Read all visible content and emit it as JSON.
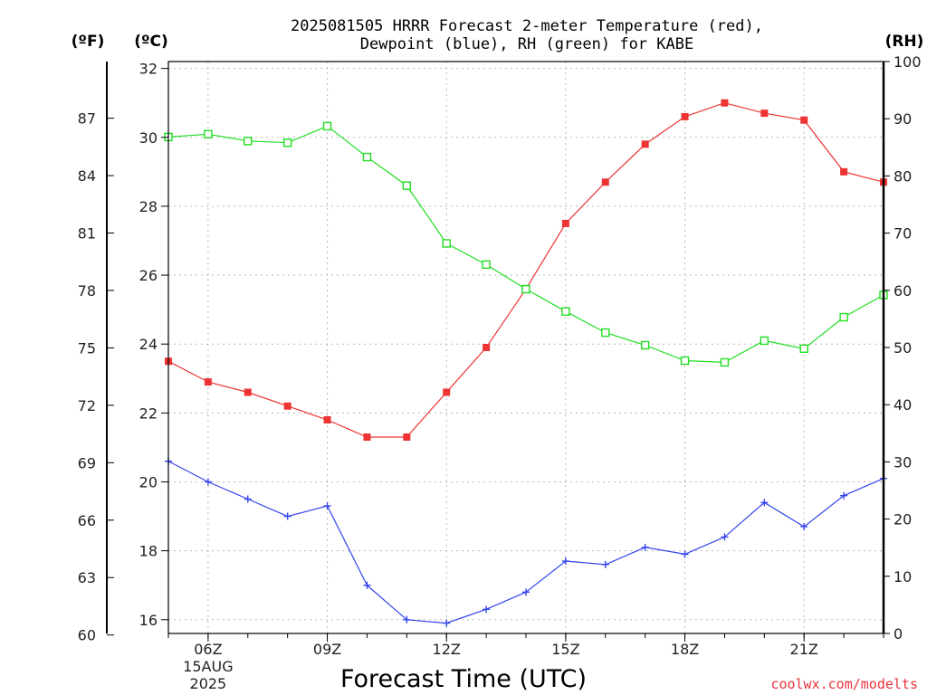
{
  "chart_data": {
    "type": "line",
    "title_line1": "2025081505 HRRR Forecast 2-meter Temperature (red),",
    "title_line2": "Dewpoint (blue), RH (green) for KABE",
    "xlabel": "Forecast Time (UTC)",
    "unit_f": "(ºF)",
    "unit_c": "(ºC)",
    "unit_rh": "(RH)",
    "credit": "coolwx.com/modelts",
    "x_hours": [
      5,
      6,
      7,
      8,
      9,
      10,
      11,
      12,
      13,
      14,
      15,
      16,
      17,
      18,
      19,
      20,
      21,
      22,
      23
    ],
    "x_ticks": [
      {
        "hour": 6,
        "label": "06Z",
        "date1": "15AUG",
        "date2": "2025"
      },
      {
        "hour": 9,
        "label": "09Z",
        "date1": "",
        "date2": ""
      },
      {
        "hour": 12,
        "label": "12Z",
        "date1": "",
        "date2": ""
      },
      {
        "hour": 15,
        "label": "15Z",
        "date1": "",
        "date2": ""
      },
      {
        "hour": 18,
        "label": "18Z",
        "date1": "",
        "date2": ""
      },
      {
        "hour": 21,
        "label": "21Z",
        "date1": "",
        "date2": ""
      }
    ],
    "xlim": [
      5,
      23
    ],
    "ylim_c": [
      15.6,
      32.2
    ],
    "ylim_rh": [
      0,
      100
    ],
    "c_ticks": [
      "16",
      "18",
      "20",
      "22",
      "24",
      "26",
      "28",
      "30",
      "32"
    ],
    "f_ticks": [
      "60",
      "63",
      "66",
      "69",
      "72",
      "75",
      "78",
      "81",
      "84",
      "87"
    ],
    "rh_ticks": [
      "0",
      "10",
      "20",
      "30",
      "40",
      "50",
      "60",
      "70",
      "80",
      "90",
      "100"
    ],
    "series": [
      {
        "name": "Temperature",
        "axis": "c",
        "color": "#ee3333",
        "marker": "filled-square",
        "values": [
          23.5,
          22.9,
          22.6,
          22.2,
          21.8,
          21.3,
          21.3,
          22.6,
          23.9,
          25.6,
          27.5,
          28.7,
          29.8,
          30.6,
          31.0,
          30.7,
          30.5,
          29.0,
          28.7
        ]
      },
      {
        "name": "Dewpoint",
        "axis": "c",
        "color": "#3344ee",
        "marker": "plus",
        "values": [
          20.6,
          20.0,
          19.5,
          19.0,
          19.3,
          17.0,
          16.0,
          15.9,
          16.3,
          16.8,
          17.7,
          17.6,
          18.1,
          17.9,
          18.4,
          19.4,
          18.7,
          19.6,
          20.1
        ]
      },
      {
        "name": "RH",
        "axis": "rh",
        "color": "#22dd22",
        "marker": "open-square",
        "values": [
          86.8,
          87.3,
          86.1,
          85.8,
          88.7,
          83.3,
          78.3,
          68.2,
          64.5,
          60.2,
          56.3,
          52.6,
          50.4,
          47.7,
          47.4,
          51.2,
          49.8,
          55.3,
          59.2
        ]
      }
    ]
  }
}
